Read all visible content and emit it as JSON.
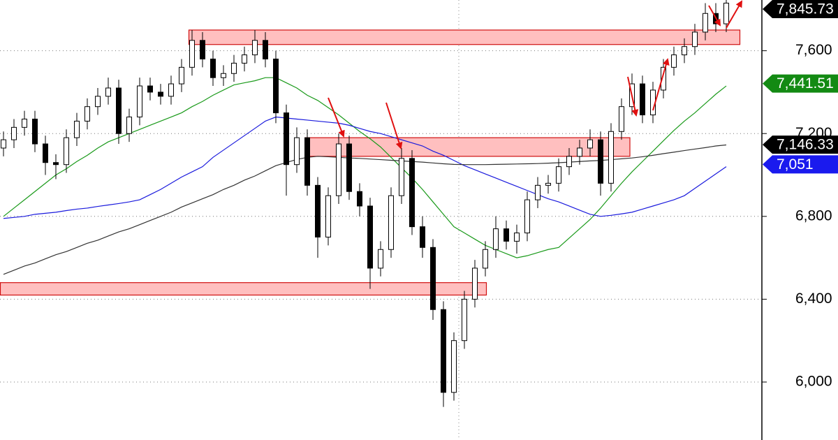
{
  "chart_data": {
    "type": "candlestick",
    "ylim": [
      5720,
      7845
    ],
    "yticks": [
      {
        "value": 6000,
        "label": "6,000"
      },
      {
        "value": 6400,
        "label": "6,400"
      },
      {
        "value": 6800,
        "label": "6,800"
      },
      {
        "value": 7200,
        "label": "7,200"
      },
      {
        "value": 7600,
        "label": "7,600"
      }
    ],
    "grid": true,
    "up_color": "#ffffff",
    "down_color": "#000000",
    "open": [
      7130,
      7170,
      7230,
      7270,
      7150,
      7060,
      7050,
      7180,
      7260,
      7330,
      7380,
      7420,
      7200,
      7280,
      7430,
      7400,
      7380,
      7440,
      7520,
      7650,
      7560,
      7470,
      7490,
      7540,
      7580,
      7650,
      7560,
      7300,
      7050,
      7180,
      6950,
      6700,
      6900,
      7150,
      6920,
      6850,
      6550,
      6640,
      6900,
      7080,
      6750,
      6650,
      6350,
      5950,
      6200,
      6400,
      6550,
      6640,
      6740,
      6680,
      6720,
      6880,
      6950,
      6960,
      7040,
      7090,
      7130,
      7170,
      6960,
      7210,
      7330,
      7440,
      7290,
      7410,
      7520,
      7580,
      7620,
      7690,
      7780,
      7730
    ],
    "high": [
      7210,
      7270,
      7310,
      7310,
      7190,
      7100,
      7220,
      7300,
      7370,
      7420,
      7470,
      7460,
      7320,
      7470,
      7470,
      7440,
      7480,
      7560,
      7700,
      7690,
      7600,
      7530,
      7580,
      7620,
      7700,
      7690,
      7600,
      7340,
      7230,
      7220,
      6990,
      6940,
      7200,
      7190,
      6960,
      6890,
      6680,
      6940,
      7130,
      7120,
      6800,
      6690,
      6390,
      6240,
      6440,
      6590,
      6680,
      6800,
      6780,
      6760,
      6920,
      6990,
      7000,
      7080,
      7130,
      7170,
      7220,
      7210,
      7250,
      7370,
      7490,
      7480,
      7450,
      7560,
      7620,
      7660,
      7730,
      7830,
      7830,
      7845
    ],
    "low": [
      7090,
      7130,
      7190,
      7110,
      7000,
      6980,
      7010,
      7140,
      7220,
      7290,
      7340,
      7150,
      7160,
      7240,
      7360,
      7340,
      7340,
      7400,
      7480,
      7520,
      7430,
      7430,
      7450,
      7500,
      7540,
      7520,
      7250,
      6900,
      7010,
      6900,
      6600,
      6660,
      6860,
      6880,
      6800,
      6450,
      6510,
      6600,
      6860,
      6710,
      6600,
      6300,
      5880,
      5910,
      6160,
      6360,
      6510,
      6600,
      6640,
      6620,
      6680,
      6840,
      6910,
      6920,
      7000,
      7050,
      7090,
      6900,
      6920,
      7170,
      7290,
      7250,
      7250,
      7370,
      7480,
      7540,
      7580,
      7650,
      7690,
      7690
    ],
    "close": [
      7170,
      7230,
      7270,
      7150,
      7060,
      7050,
      7180,
      7260,
      7330,
      7380,
      7420,
      7200,
      7280,
      7430,
      7400,
      7380,
      7440,
      7520,
      7650,
      7560,
      7470,
      7490,
      7540,
      7580,
      7650,
      7560,
      7300,
      7050,
      7180,
      6950,
      6700,
      6900,
      7150,
      6920,
      6850,
      6550,
      6640,
      6900,
      7080,
      6750,
      6650,
      6350,
      5950,
      6200,
      6400,
      6550,
      6640,
      6740,
      6680,
      6720,
      6880,
      6950,
      6960,
      7040,
      7090,
      7130,
      7170,
      6960,
      7210,
      7330,
      7440,
      7290,
      7410,
      7520,
      7580,
      7620,
      7690,
      7780,
      7730,
      7830
    ],
    "series": [
      {
        "color": "#1a9a1a",
        "values": [
          6800,
          6840,
          6880,
          6920,
          6960,
          7000,
          7030,
          7065,
          7095,
          7130,
          7160,
          7180,
          7200,
          7220,
          7240,
          7260,
          7280,
          7300,
          7330,
          7355,
          7385,
          7410,
          7435,
          7445,
          7455,
          7470,
          7470,
          7445,
          7420,
          7385,
          7360,
          7325,
          7290,
          7250,
          7210,
          7175,
          7135,
          7085,
          7035,
          6985,
          6930,
          6870,
          6810,
          6750,
          6720,
          6690,
          6660,
          6640,
          6620,
          6600,
          6610,
          6625,
          6640,
          6650,
          6695,
          6740,
          6785,
          6840,
          6900,
          6960,
          7015,
          7065,
          7115,
          7165,
          7215,
          7260,
          7300,
          7345,
          7390,
          7430
        ]
      },
      {
        "color": "#1a1add",
        "values": [
          6790,
          6795,
          6800,
          6810,
          6815,
          6820,
          6828,
          6835,
          6840,
          6848,
          6855,
          6862,
          6870,
          6880,
          6905,
          6930,
          6960,
          6990,
          7015,
          7040,
          7085,
          7120,
          7155,
          7190,
          7225,
          7260,
          7280,
          7275,
          7270,
          7265,
          7260,
          7255,
          7250,
          7240,
          7225,
          7210,
          7200,
          7185,
          7170,
          7155,
          7140,
          7115,
          7095,
          7070,
          7045,
          7025,
          7005,
          6985,
          6965,
          6945,
          6925,
          6905,
          6885,
          6870,
          6850,
          6830,
          6810,
          6800,
          6805,
          6812,
          6820,
          6835,
          6850,
          6865,
          6880,
          6900,
          6935,
          6970,
          7005,
          7040
        ]
      },
      {
        "color": "#333333",
        "values": [
          6520,
          6540,
          6560,
          6575,
          6595,
          6615,
          6630,
          6650,
          6670,
          6685,
          6705,
          6725,
          6740,
          6760,
          6780,
          6800,
          6820,
          6845,
          6865,
          6885,
          6905,
          6930,
          6950,
          6975,
          6995,
          7020,
          7045,
          7060,
          7075,
          7085,
          7090,
          7088,
          7085,
          7082,
          7080,
          7077,
          7074,
          7071,
          7068,
          7065,
          7062,
          7058,
          7054,
          7051,
          7050,
          7050,
          7050,
          7051,
          7052,
          7053,
          7054,
          7055,
          7057,
          7059,
          7062,
          7065,
          7068,
          7070,
          7074,
          7078,
          7082,
          7088,
          7095,
          7103,
          7110,
          7118,
          7125,
          7132,
          7140,
          7145
        ]
      }
    ],
    "zones": [
      {
        "low": 7630,
        "high": 7700,
        "start": 17.7,
        "end": 70.3,
        "color": "#ffbfbf"
      },
      {
        "low": 7090,
        "high": 7180,
        "start": 28.8,
        "end": 59.8,
        "color": "#ffbfbf"
      },
      {
        "low": 6420,
        "high": 6480,
        "start": -0.3,
        "end": 46.1,
        "color": "#ffbfbf"
      }
    ],
    "price_labels": [
      {
        "value": 7845.73,
        "label": "7,845.73",
        "color": "#000000"
      },
      {
        "value": 7441.51,
        "label": "7,441.51",
        "color": "#138a13"
      },
      {
        "value": 7146.33,
        "label": "7,146.33",
        "color": "#000000"
      },
      {
        "value": 7051,
        "label": "7,051",
        "color": "#1a1aee"
      }
    ]
  }
}
